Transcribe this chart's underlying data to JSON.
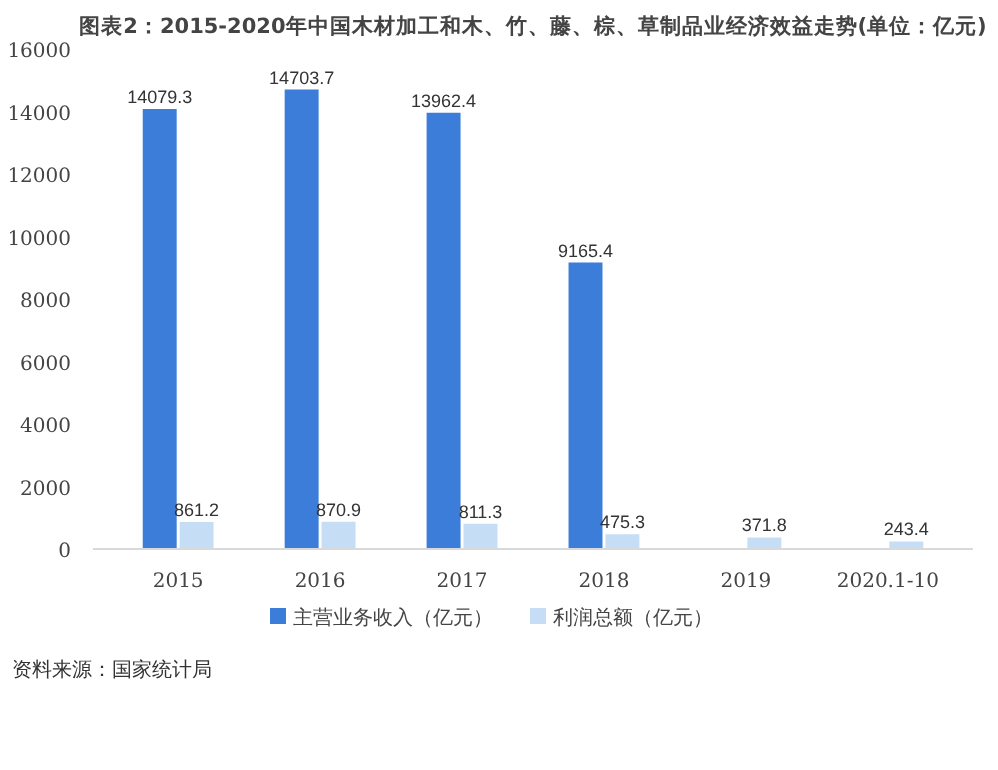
{
  "chart_data": {
    "type": "bar",
    "title": "图表2：2015-2020年中国木材加工和木、竹、藤、棕、草制品业经济效益走势(单位：亿元)",
    "categories": [
      "2015",
      "2016",
      "2017",
      "2018",
      "2019",
      "2020.1-10"
    ],
    "series": [
      {
        "name": "主营业务收入（亿元）",
        "color": "#3b7dd8",
        "values": [
          14079.3,
          14703.7,
          13962.4,
          9165.4,
          null,
          null
        ],
        "value_labels": [
          "14079.3",
          "14703.7",
          "13962.4",
          "9165.4",
          null,
          null
        ]
      },
      {
        "name": "利润总额（亿元）",
        "color": "#c6ddf6",
        "values": [
          861.2,
          870.9,
          811.3,
          475.3,
          371.8,
          243.4
        ],
        "value_labels": [
          "861.2",
          "870.9",
          "811.3",
          "475.3",
          "371.8",
          "243.4"
        ]
      }
    ],
    "ylim": [
      0,
      16000
    ],
    "yticks": [
      0,
      2000,
      4000,
      6000,
      8000,
      10000,
      12000,
      14000,
      16000
    ],
    "grid": false,
    "legend": "bottom",
    "annotations": [
      "资料来源：国家统计局"
    ]
  }
}
